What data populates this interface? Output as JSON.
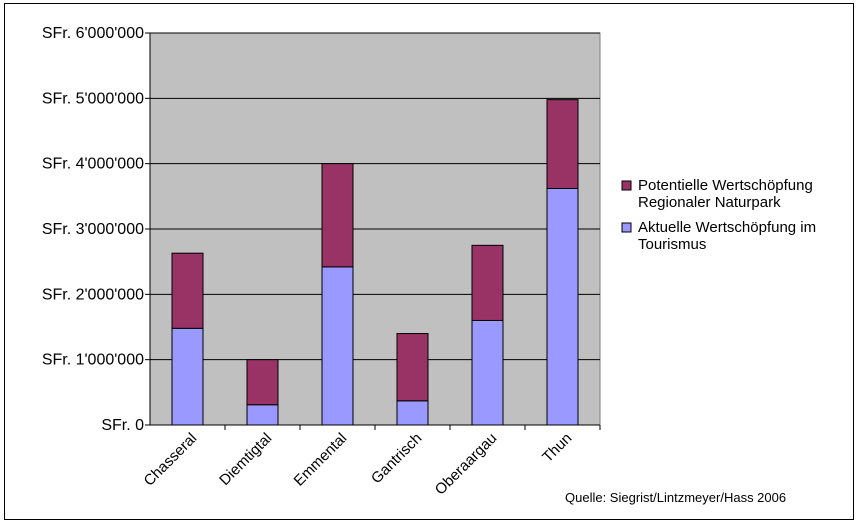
{
  "chart_data": {
    "type": "bar",
    "stacked": true,
    "categories": [
      "Chasseral",
      "Diemtigtal",
      "Emmental",
      "Gantrisch",
      "Oberaargau",
      "Thun"
    ],
    "series": [
      {
        "name": "Aktuelle Wertschöpfung im Tourismus",
        "color": "#9999FF",
        "values": [
          1480000,
          310000,
          2420000,
          370000,
          1600000,
          3620000
        ]
      },
      {
        "name": "Potentielle Wertschöpfung Regionaler Naturpark",
        "color": "#993366",
        "values": [
          1150000,
          690000,
          1580000,
          1030000,
          1150000,
          1360000
        ]
      }
    ],
    "legend_order": [
      1,
      0
    ],
    "legend_lines": [
      [
        "Potentielle Wertschöpfung",
        "Regionaler Naturpark"
      ],
      [
        "Aktuelle Wertschöpfung im",
        "Tourismus"
      ]
    ],
    "ylim": [
      0,
      6000000
    ],
    "ytick_values": [
      0,
      1000000,
      2000000,
      3000000,
      4000000,
      5000000,
      6000000
    ],
    "ytick_labels": [
      "SFr. 0",
      "SFr. 1'000'000",
      "SFr. 2'000'000",
      "SFr. 3'000'000",
      "SFr. 4'000'000",
      "SFr. 5'000'000",
      "SFr. 6'000'000"
    ],
    "grid": true,
    "legend_position": "right",
    "plot_background": "#C0C0C0",
    "source": "Quelle: Siegrist/Lintzmeyer/Hass 2006"
  }
}
